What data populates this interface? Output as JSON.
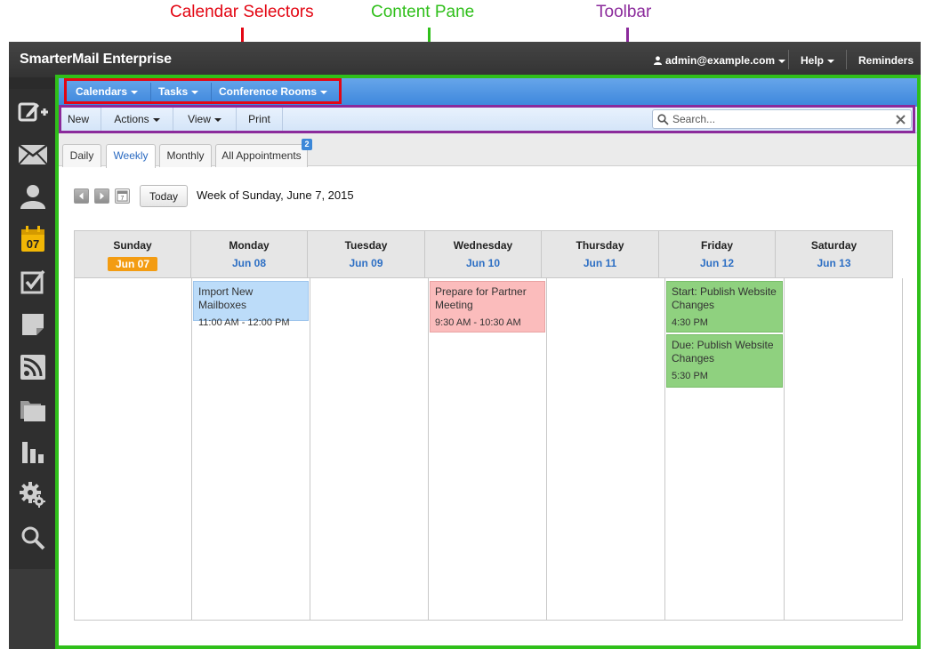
{
  "annotations": {
    "calendar_selectors": "Calendar Selectors",
    "content_pane": "Content Pane",
    "toolbar": "Toolbar",
    "colors": {
      "red": "#e30613",
      "green": "#2fbf1a",
      "purple": "#8b2a9b"
    }
  },
  "topbar": {
    "title": "SmarterMail Enterprise",
    "user": "admin@example.com",
    "help": "Help",
    "reminders": "Reminders"
  },
  "rail": {
    "icons": [
      "compose-icon",
      "mail-icon",
      "contacts-icon",
      "calendar-icon",
      "tasks-icon",
      "notes-icon",
      "rss-icon",
      "files-icon",
      "reports-icon",
      "settings-icon",
      "search-icon"
    ],
    "calendar_day": "07"
  },
  "selectors": {
    "calendars": "Calendars",
    "tasks": "Tasks",
    "conference_rooms": "Conference Rooms"
  },
  "toolbar": {
    "new": "New",
    "actions": "Actions",
    "view": "View",
    "print": "Print",
    "search_placeholder": "Search..."
  },
  "tabs": {
    "daily": "Daily",
    "weekly": "Weekly",
    "monthly": "Monthly",
    "all_appointments": "All Appointments",
    "all_appointments_count": "2"
  },
  "nav": {
    "today": "Today",
    "week_label": "Week of Sunday, June 7, 2015",
    "mini_calendar_day": "7"
  },
  "week": {
    "days": [
      {
        "name": "Sunday",
        "date": "Jun 07",
        "today": true
      },
      {
        "name": "Monday",
        "date": "Jun 08"
      },
      {
        "name": "Tuesday",
        "date": "Jun 09"
      },
      {
        "name": "Wednesday",
        "date": "Jun 10"
      },
      {
        "name": "Thursday",
        "date": "Jun 11"
      },
      {
        "name": "Friday",
        "date": "Jun 12"
      },
      {
        "name": "Saturday",
        "date": "Jun 13"
      }
    ],
    "appointments": [
      {
        "day": "Monday",
        "title": "Import New Mailboxes",
        "time": "11:00 AM - 12:00 PM",
        "color": "#bcdcf9"
      },
      {
        "day": "Wednesday",
        "title": "Prepare for Partner Meeting",
        "time": "9:30 AM - 10:30 AM",
        "color": "#fbbcbc"
      },
      {
        "day": "Friday",
        "title": "Start: Publish Website Changes",
        "time": "4:30 PM",
        "color": "#8fd17f"
      },
      {
        "day": "Friday",
        "title": "Due: Publish Website Changes",
        "time": "5:30 PM",
        "color": "#8fd17f"
      }
    ]
  }
}
